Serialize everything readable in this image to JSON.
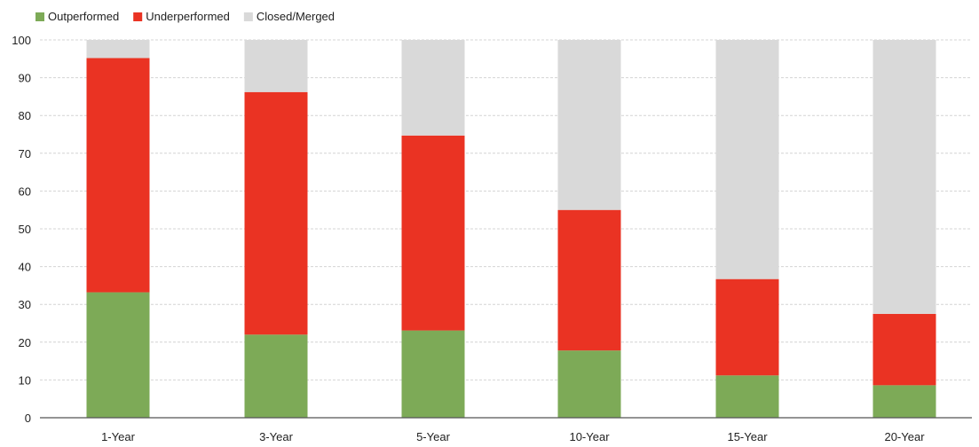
{
  "chart_data": {
    "type": "bar",
    "stacked": true,
    "categories": [
      "1-Year",
      "3-Year",
      "5-Year",
      "10-Year",
      "15-Year",
      "20-Year"
    ],
    "series": [
      {
        "name": "Outperformed",
        "color": "#7DAA57",
        "values": [
          33.2,
          22.0,
          23.1,
          17.8,
          11.2,
          8.6
        ]
      },
      {
        "name": "Underperformed",
        "color": "#EA3323",
        "values": [
          62.0,
          64.2,
          51.6,
          37.2,
          25.5,
          18.9
        ]
      },
      {
        "name": "Closed/Merged",
        "color": "#D9D9D9",
        "values": [
          4.8,
          13.8,
          25.3,
          45.0,
          63.3,
          72.5
        ]
      }
    ],
    "yticks": [
      0,
      10,
      20,
      30,
      40,
      50,
      60,
      70,
      80,
      90,
      100
    ],
    "ylim": [
      0,
      100
    ],
    "grid": true,
    "legend_position": "top-left",
    "title": "",
    "xlabel": "",
    "ylabel": ""
  }
}
